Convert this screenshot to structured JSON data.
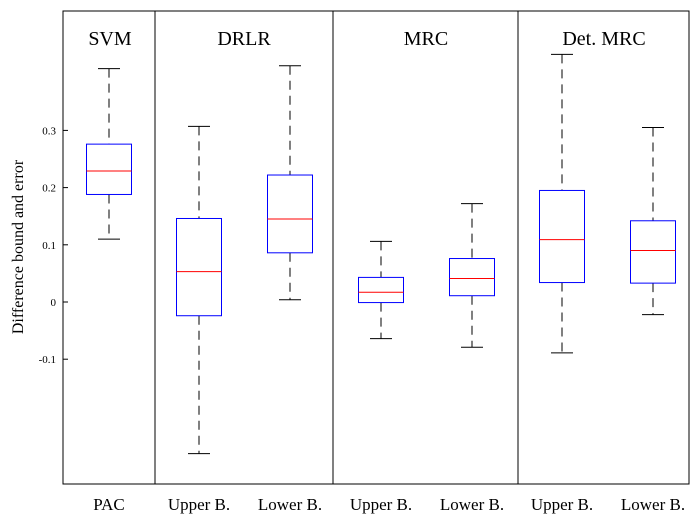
{
  "chart_data": {
    "type": "box",
    "ylabel": "Difference bound and error",
    "yticks": [
      "-0.1",
      "0",
      "0.1",
      "0.2",
      "0.3"
    ],
    "groups": [
      {
        "label": "SVM",
        "categories": [
          "PAC"
        ]
      },
      {
        "label": "DRLR",
        "categories": [
          "Upper B.",
          "Lower B."
        ]
      },
      {
        "label": "MRC",
        "categories": [
          "Upper B.",
          "Lower B."
        ]
      },
      {
        "label": "Det. MRC",
        "categories": [
          "Upper B.",
          "Lower B."
        ]
      }
    ],
    "boxes": [
      {
        "group": "SVM",
        "category": "PAC",
        "whisker_low": 0.11,
        "q1": 0.188,
        "median": 0.229,
        "q3": 0.276,
        "whisker_high": 0.408
      },
      {
        "group": "DRLR",
        "category": "Upper B.",
        "whisker_low": -0.265,
        "q1": -0.024,
        "median": 0.053,
        "q3": 0.146,
        "whisker_high": 0.307
      },
      {
        "group": "DRLR",
        "category": "Lower B.",
        "whisker_low": 0.004,
        "q1": 0.086,
        "median": 0.145,
        "q3": 0.222,
        "whisker_high": 0.413
      },
      {
        "group": "MRC",
        "category": "Upper B.",
        "whisker_low": -0.064,
        "q1": -0.001,
        "median": 0.017,
        "q3": 0.043,
        "whisker_high": 0.106
      },
      {
        "group": "MRC",
        "category": "Lower B.",
        "whisker_low": -0.079,
        "q1": 0.011,
        "median": 0.041,
        "q3": 0.076,
        "whisker_high": 0.172
      },
      {
        "group": "Det. MRC",
        "category": "Upper B.",
        "whisker_low": -0.089,
        "q1": 0.034,
        "median": 0.109,
        "q3": 0.195,
        "whisker_high": 0.433
      },
      {
        "group": "Det. MRC",
        "category": "Lower B.",
        "whisker_low": -0.022,
        "q1": 0.033,
        "median": 0.09,
        "q3": 0.142,
        "whisker_high": 0.305
      }
    ],
    "ylim": [
      -0.32,
      0.51
    ],
    "grid": false,
    "colors": {
      "box": "#0000ff",
      "median": "#ff0000",
      "whisker": "#000000",
      "frame": "#000000"
    }
  }
}
